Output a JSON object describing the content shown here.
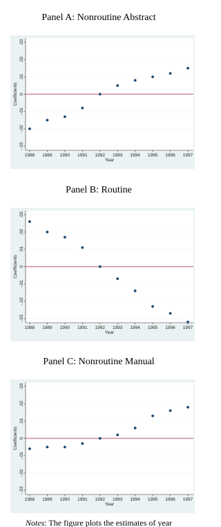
{
  "chart_data": [
    {
      "type": "scatter",
      "title": "Panel A: Nonroutine Abstract",
      "xlabel": "Year",
      "ylabel": "Coefficients",
      "x": [
        1988,
        1989,
        1990,
        1991,
        1992,
        1993,
        1994,
        1995,
        1996,
        1997
      ],
      "series": [
        {
          "color": "#1a476f",
          "values": [
            -0.02,
            -0.015,
            -0.013,
            -0.008,
            0,
            0.005,
            0.008,
            0.01,
            0.012,
            0.015
          ]
        }
      ],
      "xlim": [
        1988,
        1997
      ],
      "xticks": [
        1988,
        1989,
        1990,
        1991,
        1992,
        1993,
        1994,
        1995,
        1996,
        1997
      ],
      "ylim": [
        -0.03,
        0.03
      ],
      "yticks": [
        {
          "value": -0.03,
          "label": "-.03"
        },
        {
          "value": -0.02,
          "label": "-.02"
        },
        {
          "value": -0.01,
          "label": "-.01"
        },
        0,
        {
          "value": 0.01,
          "label": ".01"
        },
        {
          "value": 0.02,
          "label": ".02"
        },
        {
          "value": 0.03,
          "label": ".03"
        }
      ],
      "grid": true,
      "reference_line": {
        "value": 0,
        "color": "#c0506b"
      }
    },
    {
      "type": "scatter",
      "title": "Panel B: Routine",
      "xlabel": "Year",
      "ylabel": "Coefficients",
      "x": [
        1988,
        1989,
        1990,
        1991,
        1992,
        1993,
        1994,
        1995,
        1996,
        1997
      ],
      "series": [
        {
          "color": "#1a476f",
          "values": [
            0.026,
            0.02,
            0.017,
            0.011,
            0,
            -0.007,
            -0.014,
            -0.023,
            -0.027,
            -0.032
          ]
        }
      ],
      "xlim": [
        1988,
        1997
      ],
      "xticks": [
        1988,
        1989,
        1990,
        1991,
        1992,
        1993,
        1994,
        1995,
        1996,
        1997
      ],
      "ylim": [
        -0.03,
        0.03
      ],
      "yticks": [
        {
          "value": -0.03,
          "label": "-.03"
        },
        {
          "value": -0.02,
          "label": "-.02"
        },
        {
          "value": -0.01,
          "label": "-.01"
        },
        0,
        {
          "value": 0.01,
          "label": ".01"
        },
        {
          "value": 0.02,
          "label": ".02"
        },
        {
          "value": 0.03,
          "label": ".03"
        }
      ],
      "grid": true,
      "reference_line": {
        "value": 0,
        "color": "#c0506b"
      }
    },
    {
      "type": "scatter",
      "title": "Panel C: Nonroutine Manual",
      "xlabel": "Year",
      "ylabel": "Coefficients",
      "x": [
        1988,
        1989,
        1990,
        1991,
        1992,
        1993,
        1994,
        1995,
        1996,
        1997
      ],
      "series": [
        {
          "color": "#1a476f",
          "values": [
            -0.006,
            -0.005,
            -0.005,
            -0.003,
            0,
            0.002,
            0.006,
            0.013,
            0.016,
            0.018
          ]
        }
      ],
      "xlim": [
        1988,
        1997
      ],
      "xticks": [
        1988,
        1989,
        1990,
        1991,
        1992,
        1993,
        1994,
        1995,
        1996,
        1997
      ],
      "ylim": [
        -0.03,
        0.03
      ],
      "yticks": [
        {
          "value": -0.03,
          "label": "-.03"
        },
        {
          "value": -0.02,
          "label": "-.02"
        },
        {
          "value": -0.01,
          "label": "-.01"
        },
        0,
        {
          "value": 0.01,
          "label": ".01"
        },
        {
          "value": 0.02,
          "label": ".02"
        },
        {
          "value": 0.03,
          "label": ".03"
        }
      ],
      "grid": true,
      "reference_line": {
        "value": 0,
        "color": "#c0506b"
      }
    }
  ],
  "notes": {
    "label": "Notes",
    "text": ": The figure plots the estimates of year"
  }
}
